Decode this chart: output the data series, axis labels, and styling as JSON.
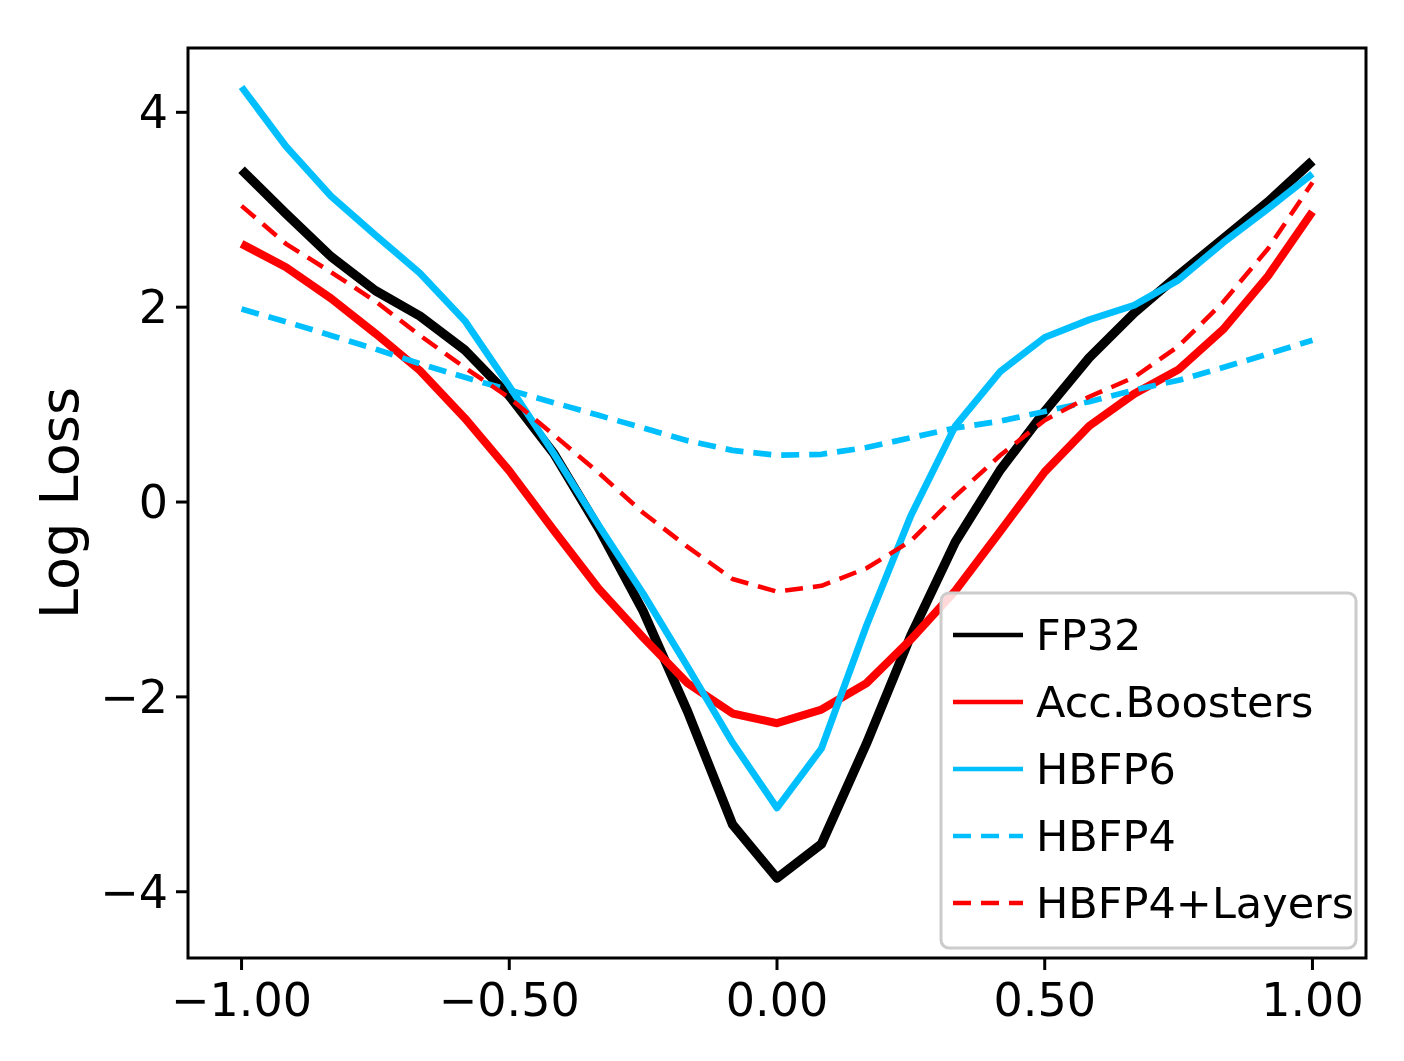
{
  "chart_data": {
    "type": "line",
    "ylabel": "Log Loss",
    "x": [
      -1,
      -0.917,
      -0.833,
      -0.75,
      -0.667,
      -0.583,
      -0.5,
      -0.417,
      -0.333,
      -0.25,
      -0.167,
      -0.083,
      0,
      0.083,
      0.167,
      0.25,
      0.333,
      0.417,
      0.5,
      0.583,
      0.667,
      0.75,
      0.833,
      0.917,
      1
    ],
    "xlim": [
      -1.1,
      1.1
    ],
    "xticks": [
      {
        "value": -1,
        "label": "−1.00"
      },
      {
        "value": -0.5,
        "label": "−0.50"
      },
      {
        "value": 0,
        "label": "0.00"
      },
      {
        "value": 0.5,
        "label": "0.50"
      },
      {
        "value": 1,
        "label": "1.00"
      }
    ],
    "ylim": [
      -4.68,
      4.66
    ],
    "yticks": [
      {
        "value": -4,
        "label": "−4"
      },
      {
        "value": -2,
        "label": "−2"
      },
      0,
      2,
      4
    ],
    "grid": false,
    "legend": "bottom right",
    "marker": "none",
    "series": [
      {
        "name": "FP32",
        "color": "#000000",
        "line_style": "solid",
        "values": [
          3.41,
          2.96,
          2.52,
          2.17,
          1.91,
          1.56,
          1.09,
          0.5,
          -0.27,
          -1.12,
          -2.15,
          -3.31,
          -3.86,
          -3.51,
          -2.48,
          -1.37,
          -0.41,
          0.33,
          0.93,
          1.48,
          1.94,
          2.33,
          2.7,
          3.08,
          3.5
        ]
      },
      {
        "name": "Acc.Boosters",
        "color": "#ff0000",
        "line_style": "solid",
        "values": [
          2.65,
          2.41,
          2.09,
          1.73,
          1.35,
          0.86,
          0.32,
          -0.29,
          -0.89,
          -1.39,
          -1.86,
          -2.17,
          -2.27,
          -2.13,
          -1.86,
          -1.41,
          -0.91,
          -0.3,
          0.31,
          0.78,
          1.11,
          1.36,
          1.77,
          2.32,
          2.98
        ]
      },
      {
        "name": "HBFP6",
        "color": "#00bfff",
        "line_style": "solid",
        "values": [
          4.26,
          3.65,
          3.14,
          2.74,
          2.35,
          1.86,
          1.19,
          0.5,
          -0.24,
          -0.94,
          -1.69,
          -2.47,
          -3.14,
          -2.53,
          -1.27,
          -0.14,
          0.78,
          1.34,
          1.69,
          1.87,
          2.02,
          2.28,
          2.66,
          3.01,
          3.37
        ]
      },
      {
        "name": "HBFP4",
        "color": "#00bfff",
        "line_style": "dashed",
        "values": [
          1.98,
          1.85,
          1.71,
          1.57,
          1.42,
          1.28,
          1.15,
          1.02,
          0.89,
          0.76,
          0.63,
          0.53,
          0.48,
          0.49,
          0.56,
          0.66,
          0.76,
          0.83,
          0.93,
          1.03,
          1.15,
          1.25,
          1.38,
          1.52,
          1.66
        ]
      },
      {
        "name": "HBFP4+Layers",
        "color": "#ff0000",
        "line_style": "dashed",
        "values": [
          3.04,
          2.65,
          2.36,
          2.06,
          1.71,
          1.38,
          1.07,
          0.69,
          0.3,
          -0.11,
          -0.46,
          -0.79,
          -0.92,
          -0.86,
          -0.68,
          -0.4,
          0.06,
          0.48,
          0.84,
          1.08,
          1.28,
          1.6,
          2.05,
          2.6,
          3.28
        ]
      }
    ]
  }
}
